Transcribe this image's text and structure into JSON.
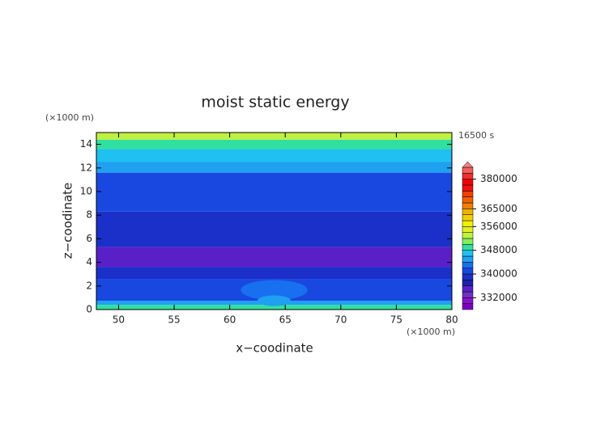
{
  "chart_data": {
    "type": "contour",
    "title": "moist static energy",
    "x_label": "x−coodinate",
    "y_label": "z−coodinate",
    "x_unit": "(×1000 m)",
    "y_unit": "(×1000 m)",
    "time_label": "16500 s",
    "xlim": [
      48,
      80
    ],
    "xticks": [
      50,
      55,
      60,
      65,
      70,
      75,
      80
    ],
    "ylim": [
      0,
      15
    ],
    "yticks": [
      0,
      2,
      4,
      6,
      8,
      10,
      12,
      14
    ],
    "bands": [
      {
        "zlim": [
          0,
          0.4
        ],
        "value": 348000
      },
      {
        "zlim": [
          0.4,
          0.75
        ],
        "value": 344000
      },
      {
        "zlim": [
          0.75,
          2.6
        ],
        "value": 341000
      },
      {
        "zlim": [
          2.6,
          3.6
        ],
        "value": 338000
      },
      {
        "zlim": [
          3.6,
          5.3
        ],
        "value": 334000
      },
      {
        "zlim": [
          5.3,
          8.3
        ],
        "value": 338000
      },
      {
        "zlim": [
          8.3,
          11.6
        ],
        "value": 341000
      },
      {
        "zlim": [
          11.6,
          12.5
        ],
        "value": 344000
      },
      {
        "zlim": [
          12.5,
          13.6
        ],
        "value": 346000
      },
      {
        "zlim": [
          13.6,
          14.4
        ],
        "value": 349000
      },
      {
        "zlim": [
          14.4,
          15
        ],
        "value": 352000
      }
    ],
    "cells": [
      {
        "x": [
          61,
          67
        ],
        "z": [
          0.8,
          2.5
        ],
        "value": 343000
      },
      {
        "x": [
          62.5,
          65.5
        ],
        "z": [
          0.3,
          1.2
        ],
        "value": 345000
      }
    ],
    "colorbar": {
      "levels": [
        328000,
        330000,
        332000,
        334000,
        336000,
        338000,
        340000,
        342000,
        344000,
        346000,
        348000,
        350000,
        352000,
        354000,
        356000,
        359000,
        362000,
        365000,
        368000,
        371000,
        374000,
        377000,
        380000,
        383000,
        386000,
        389000
      ],
      "colors": [
        "#7a00c0",
        "#8a10d0",
        "#7030c0",
        "#5a20c8",
        "#2020b0",
        "#1a30c8",
        "#1848e0",
        "#1870f0",
        "#20a0f0",
        "#20c0f0",
        "#30e0a0",
        "#80f060",
        "#c0f040",
        "#e0f020",
        "#f0f000",
        "#f0d000",
        "#f0b000",
        "#f08000",
        "#f06000",
        "#f04000",
        "#f01010",
        "#f00000",
        "#f03030",
        "#f06060",
        "#f08080"
      ],
      "ticks": [
        332000,
        340000,
        348000,
        356000,
        365000,
        380000
      ]
    }
  }
}
